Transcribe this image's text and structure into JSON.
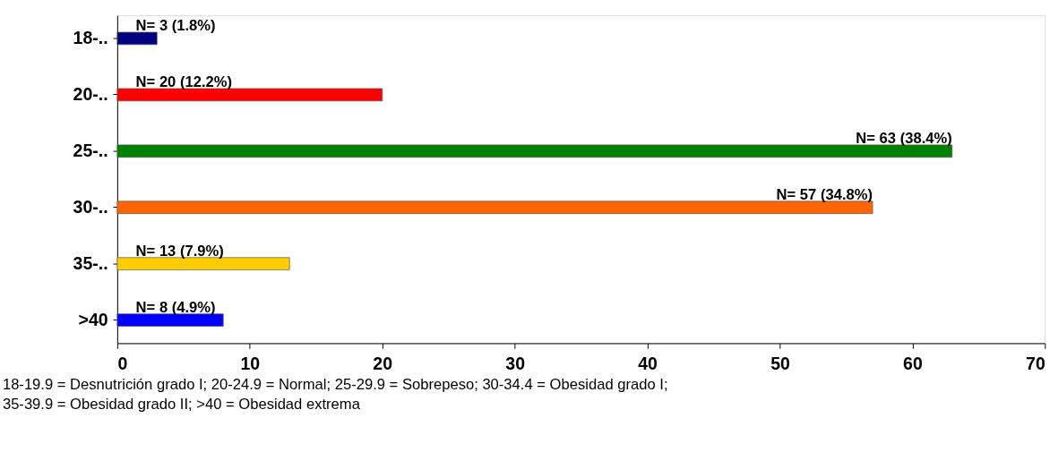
{
  "chart_data": {
    "type": "bar",
    "orientation": "horizontal",
    "categories": [
      "18-..",
      "20-..",
      "25-..",
      "30-..",
      "35-..",
      ">40"
    ],
    "values": [
      3,
      20,
      63,
      57,
      13,
      8
    ],
    "colors": [
      "#000080",
      "#ff0000",
      "#008000",
      "#ff6600",
      "#ffcc00",
      "#0000ff"
    ],
    "value_labels": [
      "N= 3 (1.8%)",
      "N= 20 (12.2%)",
      "N= 63 (38.4%)",
      "N= 57 (34.8%)",
      "N= 13 (7.9%)",
      "N= 8 (4.9%)"
    ],
    "xlim": [
      0,
      70
    ],
    "xticks": [
      0,
      10,
      20,
      30,
      40,
      50,
      60,
      70
    ],
    "grid": false,
    "annotations": [
      "18-19.9 =  Desnutrición grado I; 20-24.9 = Normal; 25-29.9 = Sobrepeso; 30-34.4 = Obesidad grado I;",
      "35-39.9 = Obesidad grado II; >40 = Obesidad extrema"
    ]
  }
}
